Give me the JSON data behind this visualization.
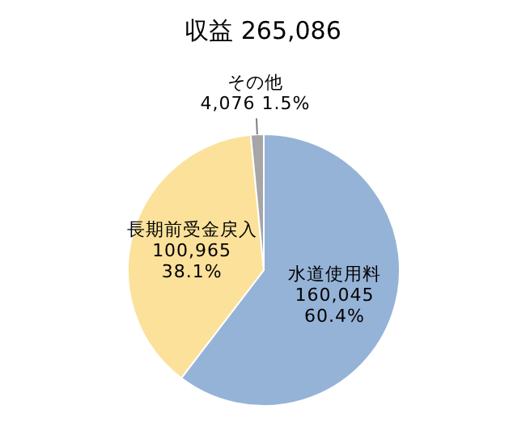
{
  "chart_data": {
    "type": "pie",
    "title": "収益 265,086",
    "categories": [
      "水道使用料",
      "長期前受金戻入",
      "その他"
    ],
    "values": [
      160045,
      100965,
      4076
    ],
    "colors": [
      "#95b3d7",
      "#fbe19a",
      "#a6a6a6"
    ],
    "value_labels": [
      "160,045\n60.4%",
      "100,965\n38.1%",
      "4,076 1.5%"
    ]
  }
}
